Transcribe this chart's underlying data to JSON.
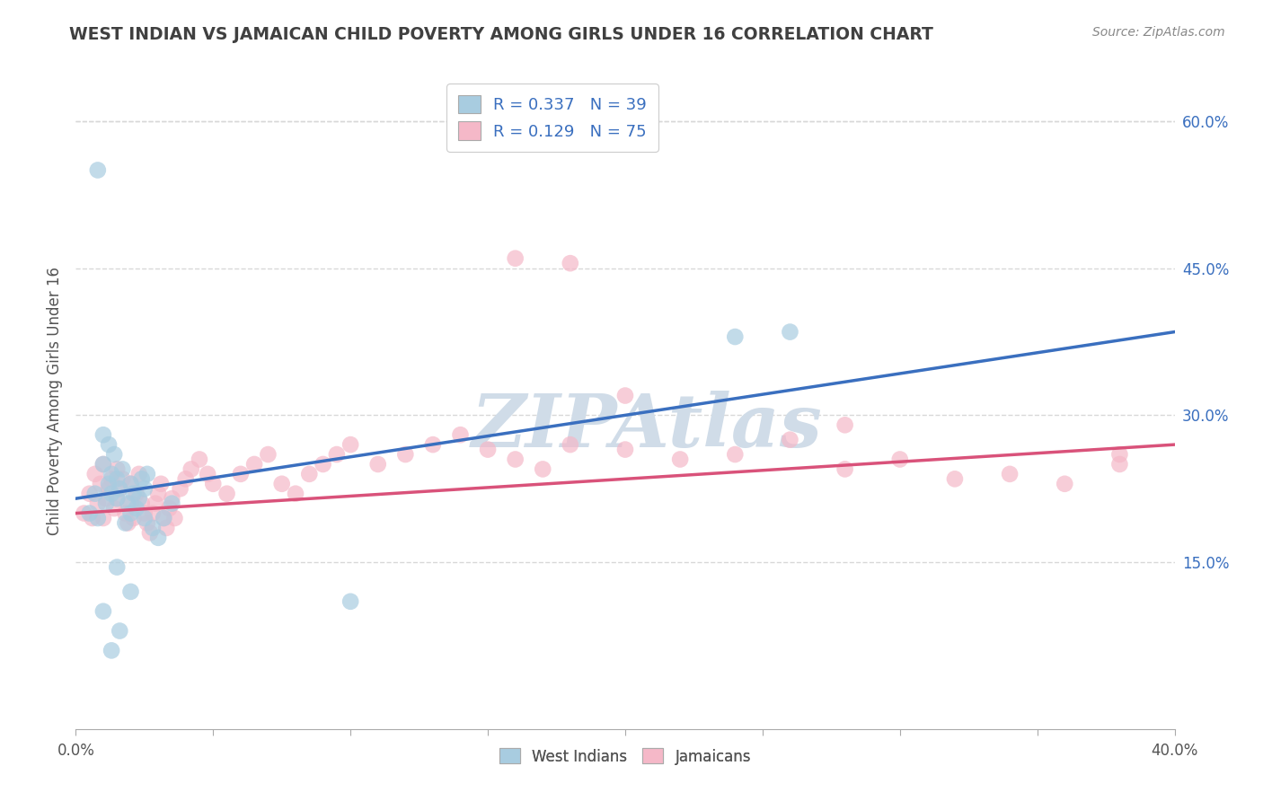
{
  "title": "WEST INDIAN VS JAMAICAN CHILD POVERTY AMONG GIRLS UNDER 16 CORRELATION CHART",
  "source": "Source: ZipAtlas.com",
  "ylabel": "Child Poverty Among Girls Under 16",
  "right_y_ticks": [
    0.6,
    0.45,
    0.3,
    0.15
  ],
  "right_y_labels": [
    "60.0%",
    "45.0%",
    "30.0%",
    "15.0%"
  ],
  "xlim": [
    0.0,
    0.4
  ],
  "ylim": [
    -0.02,
    0.65
  ],
  "west_indian_R": 0.337,
  "west_indian_N": 39,
  "jamaican_R": 0.129,
  "jamaican_N": 75,
  "blue_fill": "#a8cce0",
  "pink_fill": "#f5b8c8",
  "blue_line": "#3a6fbf",
  "pink_line": "#d9527a",
  "legend_text_color": "#3a6fbf",
  "title_color": "#404040",
  "source_color": "#888888",
  "grid_color": "#d8d8d8",
  "axis_label_color": "#555555",
  "background": "#ffffff",
  "watermark_text": "ZIPAtlas",
  "watermark_color": "#d0dce8",
  "wi_x": [
    0.005,
    0.007,
    0.008,
    0.01,
    0.01,
    0.011,
    0.012,
    0.012,
    0.013,
    0.013,
    0.014,
    0.015,
    0.015,
    0.016,
    0.017,
    0.018,
    0.019,
    0.02,
    0.02,
    0.021,
    0.022,
    0.023,
    0.024,
    0.025,
    0.025,
    0.026,
    0.028,
    0.03,
    0.032,
    0.035,
    0.01,
    0.013,
    0.016,
    0.02,
    0.1,
    0.24,
    0.26,
    0.008,
    0.015
  ],
  "wi_y": [
    0.2,
    0.22,
    0.195,
    0.28,
    0.25,
    0.21,
    0.23,
    0.27,
    0.22,
    0.24,
    0.26,
    0.215,
    0.235,
    0.225,
    0.245,
    0.19,
    0.21,
    0.2,
    0.23,
    0.22,
    0.205,
    0.215,
    0.235,
    0.195,
    0.225,
    0.24,
    0.185,
    0.175,
    0.195,
    0.21,
    0.1,
    0.06,
    0.08,
    0.12,
    0.11,
    0.38,
    0.385,
    0.55,
    0.145
  ],
  "jm_x": [
    0.003,
    0.005,
    0.006,
    0.007,
    0.008,
    0.009,
    0.01,
    0.01,
    0.011,
    0.012,
    0.013,
    0.014,
    0.015,
    0.015,
    0.016,
    0.017,
    0.018,
    0.019,
    0.02,
    0.02,
    0.021,
    0.022,
    0.023,
    0.024,
    0.025,
    0.026,
    0.027,
    0.028,
    0.029,
    0.03,
    0.031,
    0.032,
    0.033,
    0.034,
    0.035,
    0.036,
    0.038,
    0.04,
    0.042,
    0.045,
    0.048,
    0.05,
    0.055,
    0.06,
    0.065,
    0.07,
    0.075,
    0.08,
    0.085,
    0.09,
    0.095,
    0.1,
    0.11,
    0.12,
    0.13,
    0.14,
    0.15,
    0.16,
    0.17,
    0.18,
    0.2,
    0.22,
    0.24,
    0.26,
    0.28,
    0.3,
    0.32,
    0.34,
    0.36,
    0.38,
    0.16,
    0.18,
    0.2,
    0.28,
    0.38
  ],
  "jm_y": [
    0.2,
    0.22,
    0.195,
    0.24,
    0.21,
    0.23,
    0.25,
    0.195,
    0.215,
    0.225,
    0.235,
    0.205,
    0.245,
    0.215,
    0.225,
    0.235,
    0.2,
    0.19,
    0.21,
    0.23,
    0.195,
    0.22,
    0.24,
    0.21,
    0.2,
    0.19,
    0.18,
    0.2,
    0.21,
    0.22,
    0.23,
    0.195,
    0.185,
    0.205,
    0.215,
    0.195,
    0.225,
    0.235,
    0.245,
    0.255,
    0.24,
    0.23,
    0.22,
    0.24,
    0.25,
    0.26,
    0.23,
    0.22,
    0.24,
    0.25,
    0.26,
    0.27,
    0.25,
    0.26,
    0.27,
    0.28,
    0.265,
    0.255,
    0.245,
    0.27,
    0.265,
    0.255,
    0.26,
    0.275,
    0.245,
    0.255,
    0.235,
    0.24,
    0.23,
    0.26,
    0.46,
    0.455,
    0.32,
    0.29,
    0.25
  ],
  "x_tick_positions": [
    0.0,
    0.05,
    0.1,
    0.15,
    0.2,
    0.25,
    0.3,
    0.35,
    0.4
  ],
  "x_tick_labels_show": [
    "0.0%",
    "",
    "",
    "",
    "",
    "",
    "",
    "",
    "40.0%"
  ]
}
